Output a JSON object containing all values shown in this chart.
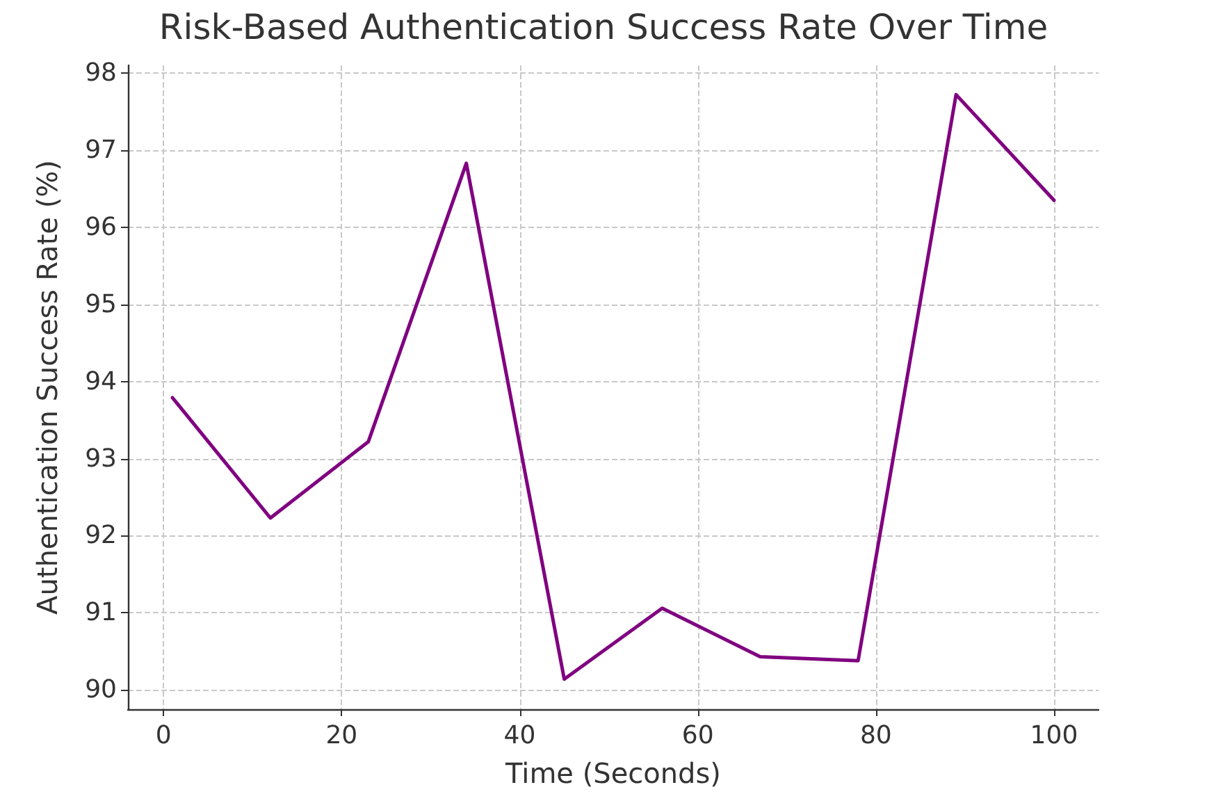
{
  "chart_data": {
    "type": "line",
    "title": "Risk-Based Authentication Success Rate Over Time",
    "xlabel": "Time (Seconds)",
    "ylabel": "Authentication Success Rate (%)",
    "x": [
      1,
      12,
      23,
      34,
      45,
      56,
      67,
      78,
      89,
      100
    ],
    "series": [
      {
        "color": "#800080",
        "values": [
          93.79,
          92.23,
          93.22,
          96.83,
          90.14,
          91.06,
          90.43,
          90.38,
          97.72,
          96.35
        ]
      }
    ],
    "xlim": [
      -4,
      105
    ],
    "xticks": [
      0,
      20,
      40,
      60,
      80,
      100
    ],
    "ylim": [
      89.75,
      98.1
    ],
    "yticks": [
      90,
      91,
      92,
      93,
      94,
      95,
      96,
      97,
      98
    ],
    "grid": true,
    "marker": "none",
    "line_style": "solid"
  }
}
